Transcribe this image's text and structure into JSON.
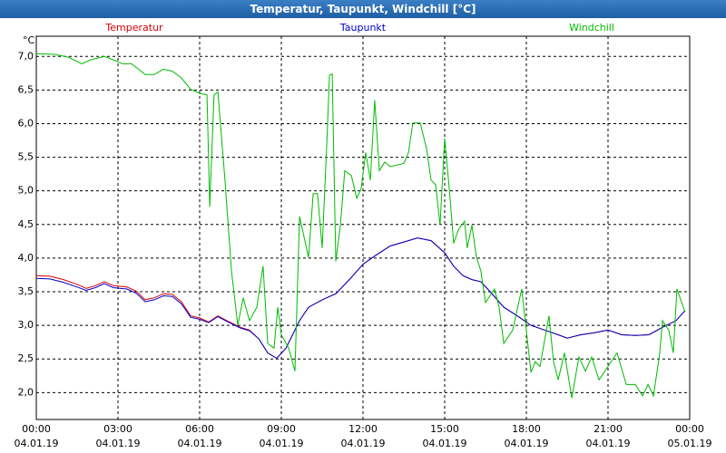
{
  "chart_data": {
    "type": "line",
    "title": "Temperatur, Taupunkt, Windchill [°C]",
    "y_unit": "°C",
    "legend": "top",
    "grid": true,
    "xlim": [
      0,
      24
    ],
    "xticks": [
      {
        "value": 0,
        "label": "00:00"
      },
      {
        "value": 3,
        "label": "03:00"
      },
      {
        "value": 6,
        "label": "06:00"
      },
      {
        "value": 9,
        "label": "09:00"
      },
      {
        "value": 12,
        "label": "12:00"
      },
      {
        "value": 15,
        "label": "15:00"
      },
      {
        "value": 18,
        "label": "18:00"
      },
      {
        "value": 21,
        "label": "21:00"
      },
      {
        "value": 24,
        "label": "00:00"
      }
    ],
    "xtick_dates": [
      "04.01.19",
      "04.01.19",
      "04.01.19",
      "04.01.19",
      "04.01.19",
      "04.01.19",
      "04.01.19",
      "04.01.19",
      "05.01.19"
    ],
    "ylim": [
      1.6,
      7.3
    ],
    "yticks": [
      {
        "value": 2,
        "label": "2,0"
      },
      {
        "value": 2.5,
        "label": "2,5"
      },
      {
        "value": 3,
        "label": "3,0"
      },
      {
        "value": 3.5,
        "label": "3,5"
      },
      {
        "value": 4,
        "label": "4,0"
      },
      {
        "value": 4.5,
        "label": "4,5"
      },
      {
        "value": 5,
        "label": "5,0"
      },
      {
        "value": 5.5,
        "label": "5,5"
      },
      {
        "value": 6,
        "label": "6,0"
      },
      {
        "value": 6.5,
        "label": "6,5"
      },
      {
        "value": 7,
        "label": "7,0"
      }
    ],
    "series": [
      {
        "name": "Temperatur",
        "color": "#dd0000",
        "x": [
          0,
          0.5,
          1,
          1.5,
          1.83,
          2.17,
          2.5,
          2.83,
          3.33,
          3.67,
          4,
          4.33,
          4.67,
          5,
          5.33,
          5.67,
          6,
          6.33,
          6.67,
          7,
          7.5,
          7.83,
          8.17,
          8.5,
          8.83,
          9.17,
          9.67,
          10,
          10.5,
          11,
          11.5,
          12,
          12.5,
          13,
          13.5,
          14,
          14.5,
          15,
          15.33,
          15.67,
          16,
          16.33,
          16.67,
          17.17,
          17.67,
          18.17,
          18.67,
          19.17,
          19.5,
          20,
          20.5,
          21,
          21.5,
          22,
          22.5,
          23,
          23.5,
          23.83
        ],
        "values": [
          3.74,
          3.73,
          3.68,
          3.61,
          3.55,
          3.59,
          3.65,
          3.59,
          3.57,
          3.51,
          3.38,
          3.41,
          3.47,
          3.46,
          3.35,
          3.14,
          3.11,
          3.05,
          3.14,
          3.07,
          2.97,
          2.93,
          2.8,
          2.59,
          2.51,
          2.66,
          3.07,
          3.27,
          3.38,
          3.47,
          3.68,
          3.91,
          4.05,
          4.18,
          4.24,
          4.3,
          4.26,
          4.08,
          3.88,
          3.74,
          3.68,
          3.65,
          3.5,
          3.27,
          3.14,
          3.0,
          2.93,
          2.86,
          2.81,
          2.86,
          2.89,
          2.93,
          2.86,
          2.85,
          2.86,
          2.97,
          3.07,
          3.22
        ]
      },
      {
        "name": "Taupunkt",
        "color": "#0000cc",
        "x": [
          0,
          0.5,
          1,
          1.5,
          1.83,
          2.17,
          2.5,
          2.83,
          3.33,
          3.67,
          4,
          4.33,
          4.67,
          5,
          5.33,
          5.67,
          6,
          6.33,
          6.67,
          7,
          7.5,
          7.83,
          8.17,
          8.5,
          8.83,
          9.17,
          9.67,
          10,
          10.5,
          11,
          11.5,
          12,
          12.5,
          13,
          13.5,
          14,
          14.5,
          15,
          15.33,
          15.67,
          16,
          16.33,
          16.67,
          17.17,
          17.67,
          18.17,
          18.67,
          19.17,
          19.5,
          20,
          20.5,
          21,
          21.5,
          22,
          22.5,
          23,
          23.5,
          23.83
        ],
        "values": [
          3.7,
          3.69,
          3.64,
          3.57,
          3.52,
          3.56,
          3.62,
          3.56,
          3.54,
          3.48,
          3.35,
          3.38,
          3.44,
          3.43,
          3.32,
          3.12,
          3.09,
          3.04,
          3.13,
          3.06,
          2.96,
          2.92,
          2.8,
          2.59,
          2.51,
          2.66,
          3.07,
          3.27,
          3.38,
          3.47,
          3.68,
          3.91,
          4.05,
          4.18,
          4.24,
          4.3,
          4.26,
          4.08,
          3.88,
          3.74,
          3.68,
          3.65,
          3.5,
          3.27,
          3.14,
          3.0,
          2.93,
          2.86,
          2.81,
          2.86,
          2.89,
          2.93,
          2.86,
          2.85,
          2.86,
          2.97,
          3.07,
          3.22
        ]
      },
      {
        "name": "Windchill",
        "color": "#00bb00",
        "x": [
          0,
          0.67,
          1.17,
          1.67,
          2,
          2.5,
          2.83,
          3.17,
          3.5,
          4,
          4.33,
          4.67,
          5,
          5.33,
          5.67,
          6,
          6.27,
          6.37,
          6.53,
          6.67,
          6.93,
          7.17,
          7.4,
          7.6,
          7.83,
          8.1,
          8.33,
          8.5,
          8.73,
          8.87,
          9,
          9.27,
          9.5,
          9.67,
          10,
          10.17,
          10.33,
          10.5,
          10.67,
          10.77,
          10.87,
          11,
          11.17,
          11.33,
          11.57,
          11.77,
          11.93,
          12.1,
          12.27,
          12.43,
          12.6,
          12.8,
          13,
          13.5,
          13.67,
          13.83,
          14.1,
          14.33,
          14.5,
          14.67,
          14.83,
          15,
          15.17,
          15.33,
          15.5,
          15.73,
          15.83,
          16,
          16.17,
          16.33,
          16.5,
          16.83,
          17,
          17.17,
          17.5,
          17.83,
          18.17,
          18.33,
          18.5,
          18.83,
          19,
          19.17,
          19.4,
          19.67,
          19.93,
          20.17,
          20.4,
          20.67,
          21,
          21.33,
          21.67,
          22,
          22.27,
          22.47,
          22.67,
          22.9,
          23,
          23.23,
          23.4,
          23.53,
          23.83
        ],
        "values": [
          7.04,
          7.03,
          6.99,
          6.89,
          6.95,
          7.0,
          6.95,
          6.89,
          6.89,
          6.73,
          6.73,
          6.81,
          6.78,
          6.68,
          6.51,
          6.45,
          6.43,
          4.76,
          6.43,
          6.47,
          5.16,
          3.81,
          3.0,
          3.41,
          3.07,
          3.27,
          3.88,
          2.73,
          2.66,
          3.27,
          2.86,
          2.66,
          2.32,
          4.62,
          4.01,
          4.96,
          4.96,
          4.15,
          5.7,
          6.72,
          6.74,
          3.95,
          4.49,
          5.3,
          5.23,
          4.89,
          5.03,
          5.57,
          5.16,
          6.35,
          5.3,
          5.43,
          5.36,
          5.41,
          5.57,
          6.01,
          6.01,
          5.64,
          5.16,
          5.09,
          4.49,
          5.78,
          5.03,
          4.22,
          4.42,
          4.55,
          4.15,
          4.49,
          4.01,
          3.81,
          3.34,
          3.54,
          3.27,
          2.73,
          2.93,
          3.54,
          2.3,
          2.46,
          2.39,
          3.14,
          2.46,
          2.19,
          2.59,
          1.92,
          2.53,
          2.32,
          2.53,
          2.19,
          2.39,
          2.59,
          2.12,
          2.12,
          1.95,
          2.12,
          1.95,
          2.59,
          3.07,
          2.93,
          2.59,
          3.54,
          3.2
        ]
      }
    ]
  }
}
